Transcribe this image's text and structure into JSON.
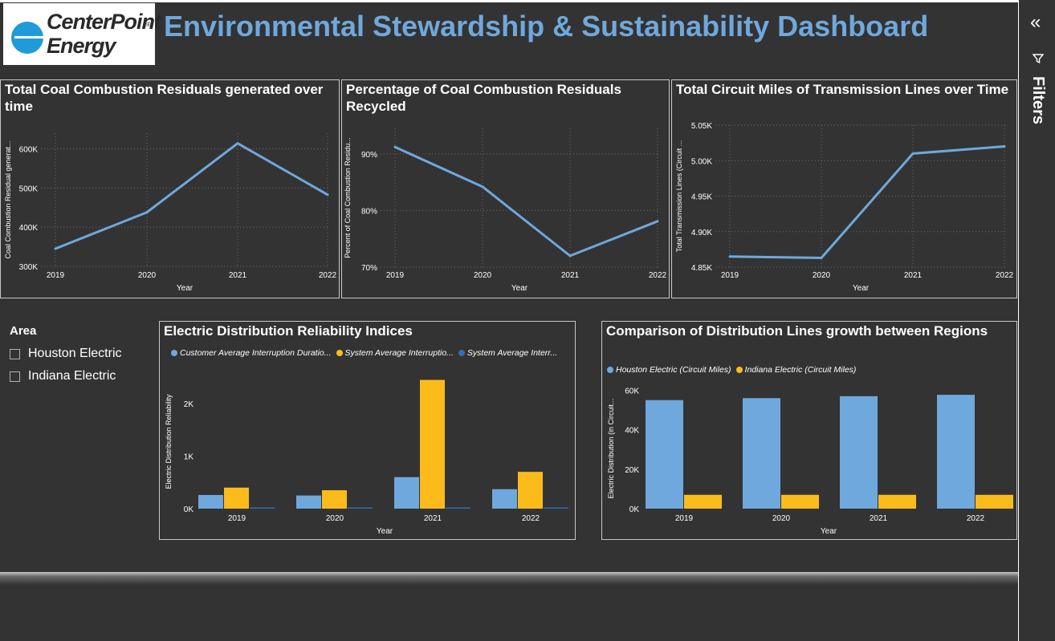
{
  "header": {
    "title": "Environmental Stewardship & Sustainability Dashboard",
    "logo_line1": "CenterPoint",
    "logo_line2": "Energy",
    "logo_reg": "®"
  },
  "slicer": {
    "title": "Area",
    "options": [
      "Houston Electric",
      "Indiana Electric"
    ]
  },
  "filters_pane": {
    "label": "Filters",
    "collapse_icon": "double-chevron-left-icon",
    "filter_icon": "funnel-icon"
  },
  "colors": {
    "blue": "#6fa8dc",
    "yellow": "#fbbc1b",
    "dark_blue": "#2f6fb4",
    "grid": "#6a6a6a"
  },
  "chart_data": [
    {
      "id": "ccr_generated",
      "type": "line",
      "title": "Total Coal Combustion Residuals generated over time",
      "xlabel": "Year",
      "ylabel": "Coal Combustion Residual generat...",
      "x": [
        "2019",
        "2020",
        "2021",
        "2022"
      ],
      "values": [
        345000,
        438000,
        614000,
        483000
      ],
      "ylim": [
        300000,
        640000
      ],
      "yticks": [
        300000,
        400000,
        500000,
        600000
      ],
      "ytick_labels": [
        "300K",
        "400K",
        "500K",
        "600K"
      ],
      "grid": true
    },
    {
      "id": "ccr_recycled",
      "type": "line",
      "title": "Percentage of Coal Combustion Residuals Recycled",
      "xlabel": "Year",
      "ylabel": "Percent of Coal Combustion Residu...",
      "x": [
        "2019",
        "2020",
        "2021",
        "2022"
      ],
      "values": [
        91.2,
        84.2,
        72.0,
        78.1
      ],
      "ylim": [
        70,
        94.5
      ],
      "yticks": [
        70,
        80,
        90
      ],
      "ytick_labels": [
        "70%",
        "80%",
        "90%"
      ],
      "grid": true
    },
    {
      "id": "transmission_miles",
      "type": "line",
      "title": "Total Circuit Miles of Transmission Lines over Time",
      "xlabel": "Year",
      "ylabel": "Total Transmission Lines (Circuit ...",
      "x": [
        "2019",
        "2020",
        "2021",
        "2022"
      ],
      "values": [
        4865,
        4863,
        5010,
        5020
      ],
      "ylim": [
        4850,
        5050
      ],
      "yticks": [
        4850,
        4900,
        4950,
        5000,
        5050
      ],
      "ytick_labels": [
        "4.85K",
        "4.90K",
        "4.95K",
        "5.00K",
        "5.05K"
      ],
      "grid": true
    },
    {
      "id": "reliability",
      "type": "bar",
      "title": "Electric Distribution Reliability Indices",
      "xlabel": "Year",
      "ylabel": "Electric Distribution Reliability",
      "categories": [
        "2019",
        "2020",
        "2021",
        "2022"
      ],
      "series": [
        {
          "name": "Customer Average Interruption Duratio...",
          "color": "#6fa8dc",
          "values": [
            260,
            250,
            600,
            370
          ]
        },
        {
          "name": "System Average Interruptio...",
          "color": "#fbbc1b",
          "values": [
            400,
            350,
            2450,
            700
          ]
        },
        {
          "name": "System Average Interr...",
          "color": "#2f6fb4",
          "values": [
            8,
            8,
            8,
            8
          ]
        }
      ],
      "ylim": [
        0,
        2550
      ],
      "yticks": [
        0,
        1000,
        2000
      ],
      "ytick_labels": [
        "0K",
        "1K",
        "2K"
      ],
      "legend": "top",
      "grid": false
    },
    {
      "id": "distribution_growth",
      "type": "bar",
      "title": "Comparison of Distribution Lines growth between Regions",
      "xlabel": "Year",
      "ylabel": "Electric Distribution (in Circuit...",
      "categories": [
        "2019",
        "2020",
        "2021",
        "2022"
      ],
      "series": [
        {
          "name": "Houston Electric (Circuit Miles)",
          "color": "#6fa8dc",
          "values": [
            55000,
            56000,
            57000,
            57700
          ]
        },
        {
          "name": "Indiana Electric (Circuit Miles)",
          "color": "#fbbc1b",
          "values": [
            7000,
            7000,
            7000,
            7000
          ]
        }
      ],
      "ylim": [
        0,
        61000
      ],
      "yticks": [
        0,
        20000,
        40000,
        60000
      ],
      "ytick_labels": [
        "0K",
        "20K",
        "40K",
        "60K"
      ],
      "legend": "top",
      "grid": false
    }
  ]
}
